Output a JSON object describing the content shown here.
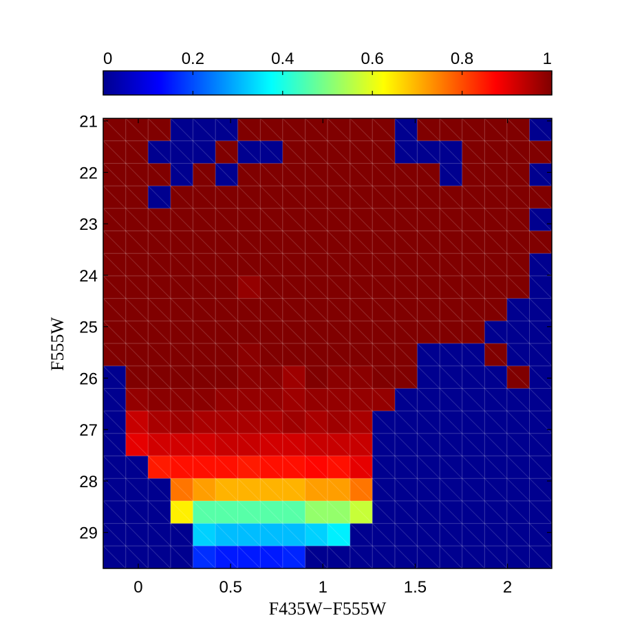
{
  "chart_data": {
    "type": "heatmap",
    "xlabel": "F435W−F555W",
    "ylabel": "F555W",
    "xlim": [
      -0.19,
      2.24
    ],
    "ylim": [
      29.7,
      20.95
    ],
    "x_ticks": [
      0,
      0.5,
      1,
      1.5,
      2
    ],
    "x_tick_labels": [
      "0",
      "0.5",
      "1",
      "1.5",
      "2"
    ],
    "y_ticks": [
      21,
      22,
      23,
      24,
      25,
      26,
      27,
      28,
      29
    ],
    "y_tick_labels": [
      "21",
      "22",
      "23",
      "24",
      "25",
      "26",
      "27",
      "28",
      "29"
    ],
    "colormap": "jet",
    "colorbar": {
      "range": [
        0,
        1
      ],
      "ticks": [
        0,
        0.2,
        0.4,
        0.6,
        0.8,
        1
      ],
      "tick_labels": [
        "0",
        "0.2",
        "0.4",
        "0.6",
        "0.8",
        "1"
      ],
      "placement": "top"
    },
    "x_bin_edges": [
      -0.19,
      -0.068,
      0.053,
      0.175,
      0.296,
      0.418,
      0.539,
      0.661,
      0.782,
      0.904,
      1.025,
      1.147,
      1.268,
      1.39,
      1.511,
      1.633,
      1.754,
      1.876,
      1.997,
      2.119,
      2.24
    ],
    "y_bin_edges": [
      20.95,
      21.387,
      21.825,
      22.263,
      22.7,
      23.137,
      23.575,
      24.013,
      24.45,
      24.888,
      25.325,
      25.763,
      26.2,
      26.638,
      27.075,
      27.513,
      27.95,
      28.388,
      28.825,
      29.262,
      29.7
    ],
    "values": [
      [
        1,
        1,
        1,
        0,
        0,
        0,
        1,
        1,
        1,
        1,
        1,
        1,
        1,
        0,
        1,
        1,
        1,
        1,
        1,
        0
      ],
      [
        1,
        1,
        0,
        0,
        0,
        1,
        0,
        0,
        1,
        1,
        1,
        1,
        1,
        0,
        0,
        0,
        1,
        1,
        1,
        1
      ],
      [
        1,
        1,
        1,
        0,
        1,
        0,
        1,
        1,
        1,
        1,
        1,
        1,
        1,
        1,
        1,
        0,
        1,
        1,
        1,
        0
      ],
      [
        1,
        1,
        0,
        1,
        1,
        1,
        1,
        1,
        1,
        1,
        1,
        1,
        1,
        1,
        1,
        1,
        1,
        1,
        1,
        1
      ],
      [
        1,
        1,
        1,
        1,
        1,
        1,
        1,
        1,
        1,
        1,
        1,
        1,
        1,
        1,
        1,
        1,
        1,
        1,
        1,
        0
      ],
      [
        1,
        1,
        1,
        1,
        1,
        1,
        1,
        1,
        1,
        1,
        1,
        1,
        1,
        1,
        1,
        1,
        1,
        1,
        1,
        1
      ],
      [
        1,
        1,
        1,
        1,
        1,
        1,
        1,
        1,
        1,
        1,
        1,
        1,
        1,
        1,
        1,
        1,
        1,
        1,
        1,
        0
      ],
      [
        1,
        1,
        1,
        1,
        1,
        1,
        0.98,
        1,
        1,
        1,
        1,
        1,
        1,
        1,
        1,
        1,
        1,
        1,
        1,
        0
      ],
      [
        1,
        1,
        1,
        1,
        1,
        1,
        1,
        1,
        1,
        1,
        1,
        1,
        1,
        1,
        1,
        1,
        1,
        1,
        0,
        0
      ],
      [
        1,
        1,
        1,
        1,
        1,
        1,
        1,
        1,
        1,
        1,
        1,
        1,
        1,
        1,
        1,
        1,
        1,
        0,
        0,
        0
      ],
      [
        1,
        1,
        1,
        1,
        1,
        1,
        0.99,
        1,
        1,
        1,
        1,
        1,
        1,
        1,
        0,
        0,
        0,
        1,
        0,
        0
      ],
      [
        0,
        1,
        1,
        1,
        1,
        1,
        0.99,
        0.99,
        0.97,
        1,
        0.99,
        0.99,
        1,
        1,
        0,
        0,
        0,
        0,
        1,
        0
      ],
      [
        0,
        0.98,
        0.99,
        0.99,
        0.99,
        0.98,
        0.98,
        0.98,
        0.97,
        0.98,
        0.98,
        0.98,
        0.98,
        0,
        0,
        0,
        0,
        0,
        0,
        0
      ],
      [
        0,
        0.93,
        0.96,
        0.97,
        0.96,
        0.96,
        0.96,
        0.96,
        0.97,
        0.96,
        0.97,
        0.96,
        0,
        0,
        0,
        0,
        0,
        0,
        0,
        0
      ],
      [
        0,
        0.9,
        0.92,
        0.92,
        0.92,
        0.93,
        0.93,
        0.92,
        0.92,
        0.93,
        0.93,
        0.93,
        0,
        0,
        0,
        0,
        0,
        0,
        0,
        0
      ],
      [
        0,
        0,
        0.85,
        0.86,
        0.86,
        0.86,
        0.85,
        0.86,
        0.86,
        0.87,
        0.86,
        0.9,
        0,
        0,
        0,
        0,
        0,
        0,
        0,
        0
      ],
      [
        0,
        0,
        0,
        0.76,
        0.72,
        0.7,
        0.7,
        0.7,
        0.7,
        0.72,
        0.72,
        0.76,
        0,
        0,
        0,
        0,
        0,
        0,
        0,
        0
      ],
      [
        0,
        0,
        0,
        0.64,
        0.46,
        0.46,
        0.46,
        0.46,
        0.46,
        0.52,
        0.52,
        0.57,
        0,
        0,
        0,
        0,
        0,
        0,
        0,
        0
      ],
      [
        0,
        0,
        0,
        0,
        0.33,
        0.31,
        0.31,
        0.31,
        0.31,
        0.33,
        0.36,
        0,
        0,
        0,
        0,
        0,
        0,
        0,
        0,
        0
      ],
      [
        0,
        0,
        0,
        0,
        0.17,
        0.15,
        0.15,
        0.15,
        0.16,
        0,
        0,
        0,
        0,
        0,
        0,
        0,
        0,
        0,
        0,
        0
      ]
    ]
  }
}
